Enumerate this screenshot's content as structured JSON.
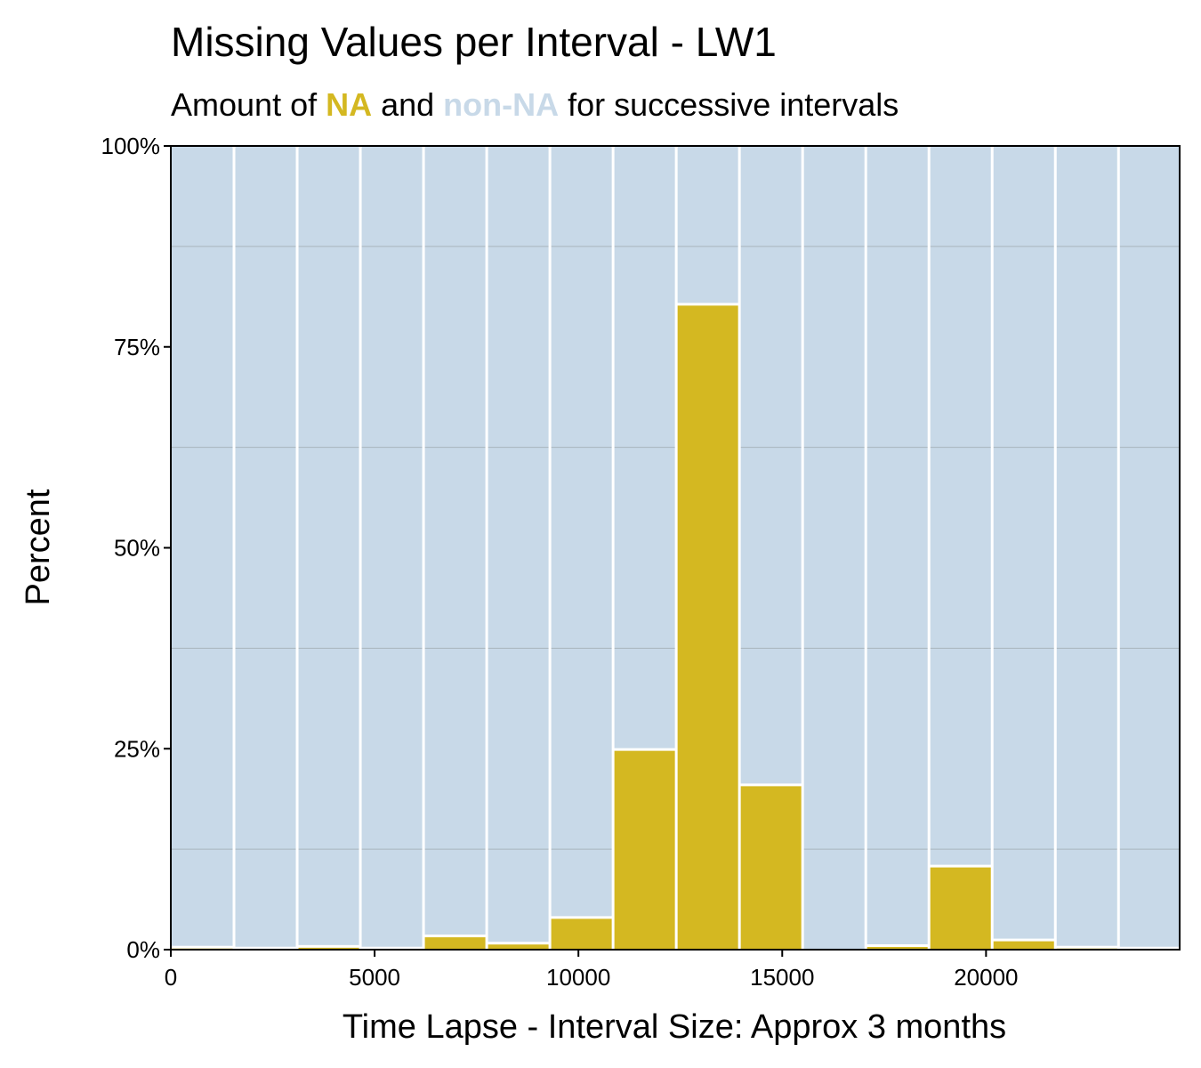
{
  "chart_data": {
    "type": "bar",
    "title": "Missing Values per Interval - LW1",
    "subtitle": {
      "prefix": "Amount of ",
      "na_word": "NA",
      "middle": " and ",
      "nonna_word": "non-NA",
      "suffix": " for successive intervals"
    },
    "xlabel": "Time Lapse - Interval Size: Approx 3 months",
    "ylabel": "Percent",
    "xlim": [
      0,
      24750
    ],
    "ylim": [
      0,
      100
    ],
    "interval_width": 1550,
    "x_ticks": [
      0,
      5000,
      10000,
      15000,
      20000
    ],
    "x_tick_labels": [
      "0",
      "5000",
      "10000",
      "15000",
      "20000"
    ],
    "y_ticks": [
      0,
      25,
      50,
      75,
      100
    ],
    "y_tick_labels": [
      "0%",
      "25%",
      "50%",
      "75%",
      "100%"
    ],
    "bins_start": [
      0,
      1550,
      3100,
      4650,
      6200,
      7750,
      9300,
      10850,
      12400,
      13950,
      15500,
      17050,
      18600,
      20150,
      21700,
      23250
    ],
    "series": [
      {
        "name": "NA",
        "values": [
          0.3,
          0.2,
          0.4,
          0.2,
          1.7,
          0.8,
          4.0,
          24.9,
          80.3,
          20.5,
          0.0,
          0.5,
          10.4,
          1.2,
          0.3,
          0.2
        ]
      }
    ],
    "colors": {
      "na": "#d4b821",
      "non_na": "#c8d9e8",
      "bar_edge": "#ffffff",
      "grid": "#a9b4bd",
      "axis": "#000000"
    },
    "grid": true,
    "legend": "none"
  }
}
